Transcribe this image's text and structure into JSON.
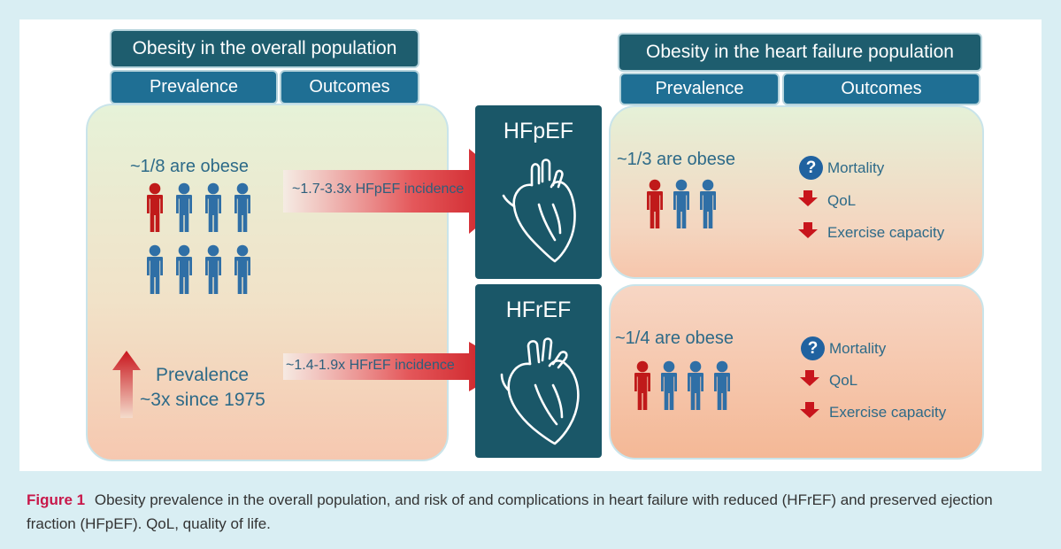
{
  "left": {
    "title": "Obesity in the overall population",
    "tabs": [
      "Prevalence",
      "Outcomes"
    ],
    "obese_text": "~1/8 are obese",
    "trend_line1": "Prevalence",
    "trend_line2": "~3x since 1975"
  },
  "right": {
    "title": "Obesity in the heart failure population",
    "tabs": [
      "Prevalence",
      "Outcomes"
    ]
  },
  "hfpef": {
    "label": "HFpEF",
    "arrow_text": "~1.7-3.3x HFpEF incidence",
    "obese_text": "~1/3 are obese",
    "outcomes": [
      {
        "icon": "question-icon",
        "text": "Mortality"
      },
      {
        "icon": "down-arrow-icon",
        "text": "QoL"
      },
      {
        "icon": "down-arrow-icon",
        "text": "Exercise capacity"
      }
    ]
  },
  "hfref": {
    "label": "HFrEF",
    "arrow_text": "~1.4-1.9x HFrEF incidence",
    "obese_text": "~1/4 are obese",
    "outcomes": [
      {
        "icon": "question-icon",
        "text": "Mortality"
      },
      {
        "icon": "down-arrow-icon",
        "text": "QoL"
      },
      {
        "icon": "down-arrow-icon",
        "text": "Exercise capacity"
      }
    ]
  },
  "caption": {
    "label": "Figure 1",
    "text": "Obesity prevalence in the overall population, and risk of and complications in heart failure with reduced (HFrEF) and preserved ejection fraction (HFpEF). QoL, quality of life."
  },
  "colors": {
    "obese_person": "#c01a1a",
    "person": "#2f6fa6",
    "arrow": "#cc1f1f",
    "header_dark": "#1e5d6e",
    "header_mid": "#1f6f94"
  },
  "question_mark": "?"
}
